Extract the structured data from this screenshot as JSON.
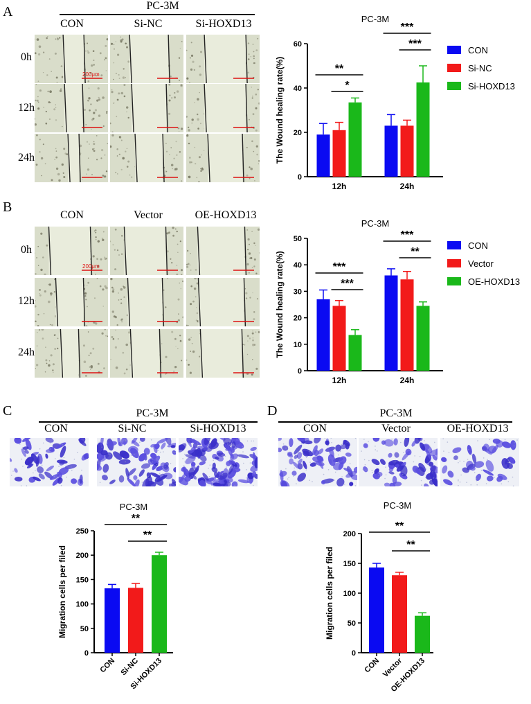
{
  "colors": {
    "con": "#0a0af2",
    "si_nc": "#f21a1a",
    "treat": "#1ab81a",
    "scale": "#dd1111"
  },
  "panelA": {
    "label": "A",
    "group_title": "PC-3M",
    "columns": [
      "CON",
      "Si-NC",
      "Si-HOXD13"
    ],
    "rows": [
      "0h",
      "12h",
      "24h"
    ],
    "scale_label": "200μm"
  },
  "panelB": {
    "label": "B",
    "columns": [
      "CON",
      "Vector",
      "OE-HOXD13"
    ],
    "rows": [
      "0h",
      "12h",
      "24h"
    ],
    "scale_label": "200μm"
  },
  "panelC": {
    "label": "C",
    "group_title": "PC-3M",
    "columns": [
      "CON",
      "Si-NC",
      "Si-HOXD13"
    ]
  },
  "panelD": {
    "label": "D",
    "group_title": "PC-3M",
    "columns": [
      "CON",
      "Vector",
      "OE-HOXD13"
    ]
  },
  "chart_data": [
    {
      "id": "A",
      "type": "bar",
      "title": "PC-3M",
      "ylabel": "The Wound healing rate(%)",
      "xlabel": "",
      "categories": [
        "12h",
        "24h"
      ],
      "ylim": [
        0,
        60
      ],
      "yticks": [
        0,
        20,
        40,
        60
      ],
      "series": [
        {
          "name": "CON",
          "values": [
            19,
            23
          ],
          "errors": [
            5,
            5
          ]
        },
        {
          "name": "Si-NC",
          "values": [
            21,
            23
          ],
          "errors": [
            3.5,
            2.5
          ]
        },
        {
          "name": "Si-HOXD13",
          "values": [
            33.5,
            42.5
          ],
          "errors": [
            2,
            7.5
          ]
        }
      ],
      "legend": [
        "CON",
        "Si-NC",
        "Si-HOXD13"
      ],
      "significance": [
        {
          "label": "**",
          "group": 0,
          "from": 0,
          "to": 2
        },
        {
          "label": "*",
          "group": 0,
          "from": 1,
          "to": 2
        },
        {
          "label": "***",
          "group": 1,
          "from": 0,
          "to": 2
        },
        {
          "label": "***",
          "group": 1,
          "from": 1,
          "to": 2
        }
      ]
    },
    {
      "id": "B",
      "type": "bar",
      "title": "PC-3M",
      "ylabel": "The Wound healing rate(%)",
      "xlabel": "",
      "categories": [
        "12h",
        "24h"
      ],
      "ylim": [
        0,
        50
      ],
      "yticks": [
        0,
        10,
        20,
        30,
        40,
        50
      ],
      "series": [
        {
          "name": "CON",
          "values": [
            27,
            36
          ],
          "errors": [
            3.5,
            2.5
          ]
        },
        {
          "name": "Vector",
          "values": [
            24.5,
            34.5
          ],
          "errors": [
            2,
            3
          ]
        },
        {
          "name": "OE-HOXD13",
          "values": [
            13.5,
            24.5
          ],
          "errors": [
            2,
            1.5
          ]
        }
      ],
      "legend": [
        "CON",
        "Vector",
        "OE-HOXD13"
      ],
      "significance": [
        {
          "label": "***",
          "group": 0,
          "from": 0,
          "to": 2
        },
        {
          "label": "***",
          "group": 0,
          "from": 1,
          "to": 2
        },
        {
          "label": "***",
          "group": 1,
          "from": 0,
          "to": 2
        },
        {
          "label": "**",
          "group": 1,
          "from": 1,
          "to": 2
        }
      ]
    },
    {
      "id": "C",
      "type": "bar",
      "title": "PC-3M",
      "ylabel": "Migration cells per filed",
      "xlabel": "",
      "categories": [
        "CON",
        "Si-NC",
        "Si-HOXD13"
      ],
      "ylim": [
        0,
        250
      ],
      "yticks": [
        0,
        50,
        100,
        150,
        200,
        250
      ],
      "values": [
        132,
        133,
        200
      ],
      "errors": [
        8,
        9,
        6
      ],
      "significance": [
        {
          "label": "**",
          "from": 0,
          "to": 2
        },
        {
          "label": "**",
          "from": 1,
          "to": 2
        }
      ]
    },
    {
      "id": "D",
      "type": "bar",
      "title": "PC-3M",
      "ylabel": "Migration cells per filed",
      "xlabel": "",
      "categories": [
        "CON",
        "Vector",
        "OE-HOXD13"
      ],
      "ylim": [
        0,
        200
      ],
      "yticks": [
        0,
        50,
        100,
        150,
        200
      ],
      "values": [
        143,
        130,
        62
      ],
      "errors": [
        7,
        5,
        5
      ],
      "significance": [
        {
          "label": "**",
          "from": 0,
          "to": 2
        },
        {
          "label": "**",
          "from": 1,
          "to": 2
        }
      ]
    }
  ]
}
